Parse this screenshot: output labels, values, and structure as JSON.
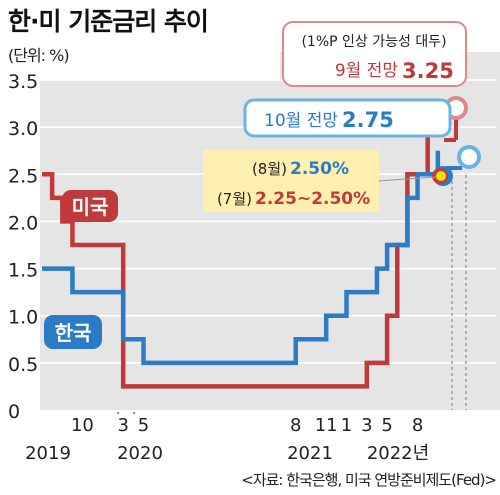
{
  "title": "한·미 기준금리 추이",
  "unit": "(단위: %)",
  "source": "<자료: 한국은행, 미국 연방준비제도(Fed)>",
  "colors": {
    "us": "#c0393b",
    "korea": "#2b7bc6",
    "plot_bg": "#e5e5e5",
    "highlight": "#fff0b0",
    "dot_yellow": "#f5e100"
  },
  "chart_data": {
    "type": "line",
    "step": true,
    "ylim": [
      0,
      3.5
    ],
    "yticks": [
      "0",
      "0.5",
      "1.0",
      "1.5",
      "2.0",
      "2.5",
      "3.0",
      "3.5"
    ],
    "xticks": [
      "10",
      "3",
      "5",
      "8",
      "11",
      "1",
      "3",
      "5",
      "8"
    ],
    "year_labels": [
      "2019",
      "2020",
      "2021",
      "2022년"
    ],
    "series": [
      {
        "name": "미국",
        "x": [
          "2019-07",
          "2019-08",
          "2019-09",
          "2019-10",
          "2019-12",
          "2020-03",
          "2020-03",
          "2022-03",
          "2022-05",
          "2022-06",
          "2022-07",
          "2022-08",
          "2022-09"
        ],
        "y": [
          2.5,
          2.25,
          2.0,
          1.75,
          1.75,
          0.25,
          0.25,
          0.5,
          1.0,
          1.75,
          2.5,
          2.5,
          3.25
        ]
      },
      {
        "name": "한국",
        "x": [
          "2019-07",
          "2019-10",
          "2020-03",
          "2020-05",
          "2021-08",
          "2021-11",
          "2022-01",
          "2022-04",
          "2022-05",
          "2022-07",
          "2022-08",
          "2022-10"
        ],
        "y": [
          1.5,
          1.25,
          0.75,
          0.5,
          0.75,
          1.0,
          1.25,
          1.5,
          1.75,
          2.25,
          2.5,
          2.75
        ]
      }
    ],
    "annotations": {
      "us_label": "미국",
      "korea_label": "한국",
      "aug": "(8월)",
      "aug_value": "2.50%",
      "jul": "(7월)",
      "jul_value": "2.25~2.50%",
      "oct_forecast": "10월 전망",
      "oct_value": "2.75",
      "sep_note": "(1%P 인상 가능성 대두)",
      "sep_forecast": "9월 전망",
      "sep_value": "3.25"
    }
  }
}
